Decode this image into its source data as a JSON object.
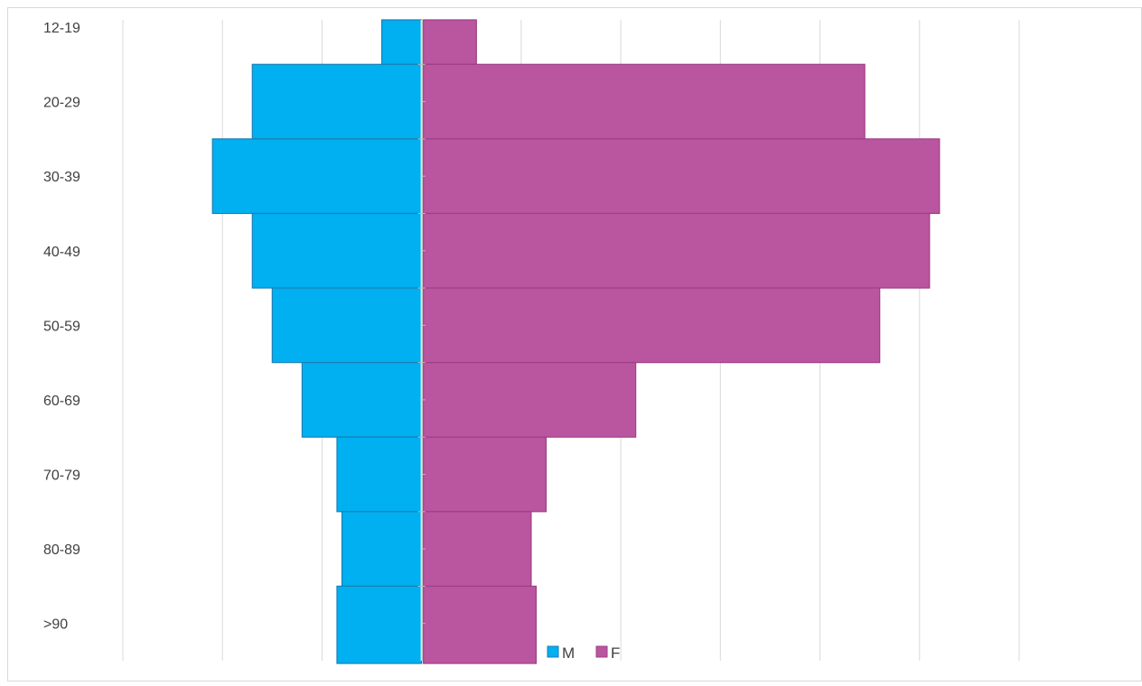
{
  "chart_data": {
    "type": "bar",
    "orientation": "horizontal",
    "style": "population-pyramid",
    "categories": [
      "12-19",
      "20-29",
      "30-39",
      "40-49",
      "50-59",
      "60-69",
      "70-79",
      "80-89",
      ">90"
    ],
    "series": [
      {
        "name": "M",
        "values": [
          0.4,
          1.7,
          2.1,
          1.7,
          1.5,
          1.2,
          0.85,
          0.8,
          0.85
        ],
        "color": "#00b0f0"
      },
      {
        "name": "F",
        "values": [
          0.55,
          4.45,
          5.2,
          5.1,
          4.6,
          2.15,
          1.25,
          1.1,
          1.15
        ],
        "color": "#ba55a0"
      }
    ],
    "xlim": [
      -3.0,
      6.0
    ],
    "grid_step": 1,
    "grid": true,
    "x_tick_labels_shown": false,
    "legend": {
      "position": "bottom"
    },
    "title": "",
    "xlabel": "",
    "ylabel": ""
  }
}
